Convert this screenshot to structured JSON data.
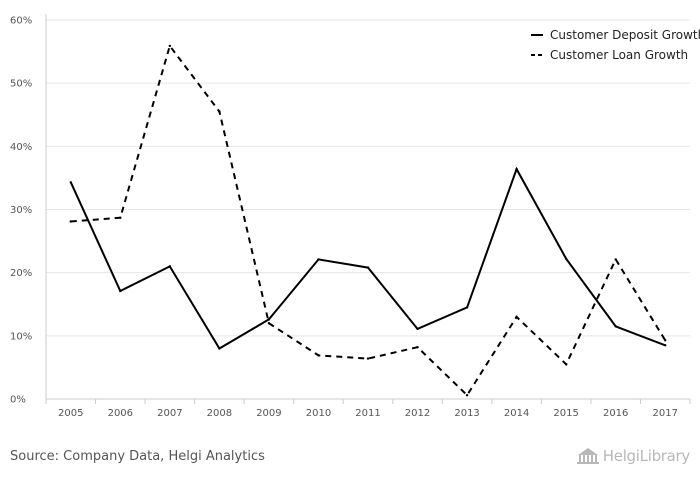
{
  "chart_data": {
    "type": "line",
    "title": "",
    "xlabel": "",
    "ylabel": "",
    "categories": [
      "2005",
      "2006",
      "2007",
      "2008",
      "2009",
      "2010",
      "2011",
      "2012",
      "2013",
      "2014",
      "2015",
      "2016",
      "2017"
    ],
    "ylim": [
      0,
      60
    ],
    "yticks": [
      0,
      10,
      20,
      30,
      40,
      50,
      60
    ],
    "ytick_labels": [
      "0%",
      "10%",
      "20%",
      "30%",
      "40%",
      "50%",
      "60%"
    ],
    "grid": true,
    "legend_position": "top-right",
    "series": [
      {
        "name": "Customer Deposit Growth",
        "style": "solid",
        "color": "#000000",
        "values": [
          34.3,
          17.1,
          21.0,
          8.0,
          12.6,
          22.1,
          20.8,
          11.1,
          14.5,
          36.4,
          22.2,
          11.5,
          8.5
        ]
      },
      {
        "name": "Customer Loan Growth",
        "style": "dashed",
        "color": "#000000",
        "values": [
          28.1,
          28.7,
          55.9,
          45.5,
          12.0,
          6.9,
          6.4,
          8.2,
          0.6,
          13.0,
          5.5,
          22.1,
          9.3
        ]
      }
    ]
  },
  "footer": {
    "source": "Source: Company Data, Helgi Analytics",
    "brand": "HelgiLibrary"
  },
  "colors": {
    "grid": "#e6e6e6",
    "axis": "#cccccc",
    "text": "#555555"
  }
}
